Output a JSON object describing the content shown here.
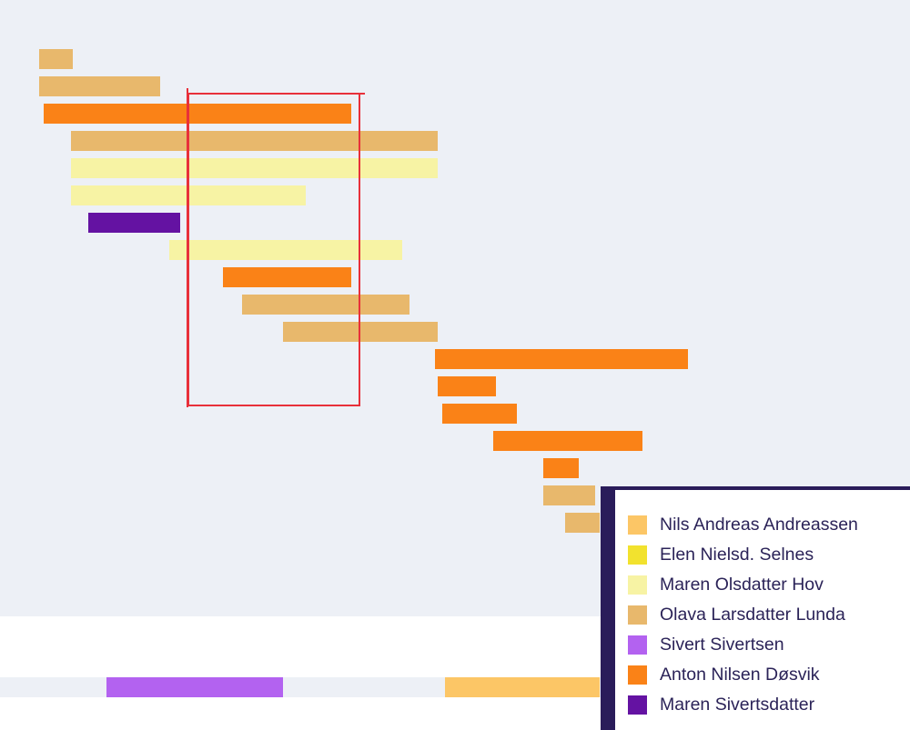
{
  "chart_data": {
    "type": "bar",
    "subtype": "timeline",
    "title": "",
    "xlabel": "",
    "ylabel": "",
    "grid": false,
    "legend_position": "bottom-right",
    "series": [
      {
        "name": "Nils Andreas Andreassen",
        "color": "#fcc666"
      },
      {
        "name": "Elen Nielsd. Selnes",
        "color": "#f2e22e"
      },
      {
        "name": "Maren Olsdatter Hov",
        "color": "#f7f3a4"
      },
      {
        "name": "Olava Larsdatter Lunda",
        "color": "#e8b86c"
      },
      {
        "name": "Sivert Sivertsen",
        "color": "#b362f0"
      },
      {
        "name": "Anton Nilsen Døsvik",
        "color": "#fa8217"
      },
      {
        "name": "Maren Sivertsdatter",
        "color": "#6412a2"
      }
    ],
    "bars": [
      {
        "series": "Olava Larsdatter Lunda",
        "start": 0.0,
        "end": 3.7
      },
      {
        "series": "Olava Larsdatter Lunda",
        "start": 0.0,
        "end": 13.3
      },
      {
        "series": "Anton Nilsen Døsvik",
        "start": 0.5,
        "end": 34.3
      },
      {
        "series": "Olava Larsdatter Lunda",
        "start": 3.5,
        "end": 43.8
      },
      {
        "series": "Maren Olsdatter Hov",
        "start": 3.5,
        "end": 43.8
      },
      {
        "series": "Maren Olsdatter Hov",
        "start": 3.5,
        "end": 29.3
      },
      {
        "series": "Maren Sivertsdatter",
        "start": 5.4,
        "end": 15.5
      },
      {
        "series": "Maren Olsdatter Hov",
        "start": 14.3,
        "end": 39.9
      },
      {
        "series": "Anton Nilsen Døsvik",
        "start": 20.2,
        "end": 34.3
      },
      {
        "series": "Olava Larsdatter Lunda",
        "start": 22.3,
        "end": 40.7
      },
      {
        "series": "Olava Larsdatter Lunda",
        "start": 26.8,
        "end": 43.8
      },
      {
        "series": "Anton Nilsen Døsvik",
        "start": 43.5,
        "end": 71.3
      },
      {
        "series": "Anton Nilsen Døsvik",
        "start": 43.8,
        "end": 50.2
      },
      {
        "series": "Anton Nilsen Døsvik",
        "start": 44.3,
        "end": 52.5
      },
      {
        "series": "Anton Nilsen Døsvik",
        "start": 49.9,
        "end": 66.3
      },
      {
        "series": "Anton Nilsen Døsvik",
        "start": 55.4,
        "end": 59.3
      },
      {
        "series": "Olava Larsdatter Lunda",
        "start": 55.4,
        "end": 61.1
      },
      {
        "series": "Olava Larsdatter Lunda",
        "start": 57.8,
        "end": 61.6
      }
    ],
    "overview_bars": [
      {
        "series": "Sivert Sivertsen",
        "start": 7.4,
        "end": 26.8
      },
      {
        "series": "Nils Andreas Andreassen",
        "start": 44.6,
        "end": 61.6
      }
    ],
    "selection": {
      "start": 16.4,
      "end": 35.2
    }
  }
}
